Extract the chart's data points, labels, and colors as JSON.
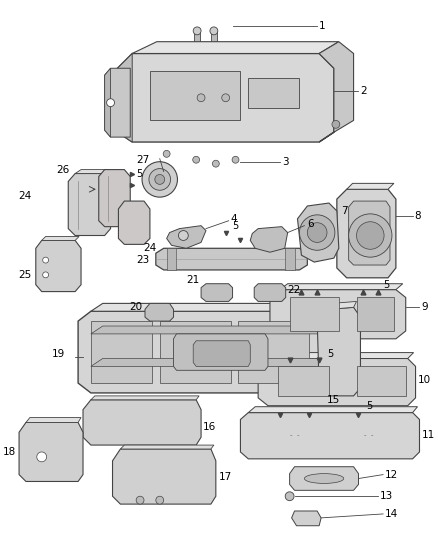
{
  "background_color": "#ffffff",
  "fig_width": 4.38,
  "fig_height": 5.33,
  "dpi": 100,
  "label_fontsize": 7.5,
  "label_color": "#000000",
  "line_color": "#444444",
  "part_fill": "#e8e8e8",
  "part_edge": "#444444",
  "part_dark": "#cccccc",
  "part_light": "#f0f0f0"
}
